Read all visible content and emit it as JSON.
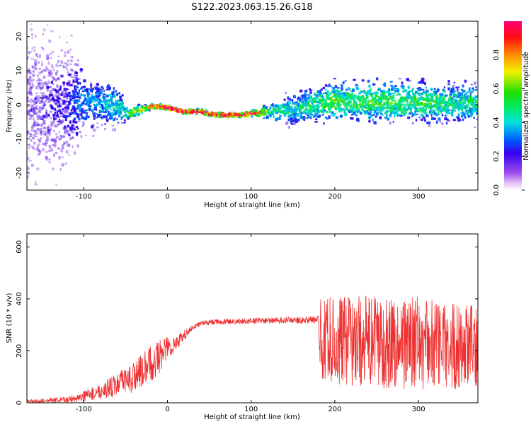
{
  "figure_title": "S122.2023.063.15.26.G18",
  "chart_data": [
    {
      "type": "heatmap",
      "title": "S122.2023.063.15.26.G18",
      "xlabel": "Height of straight line (km)",
      "ylabel": "Frequency (Hz)",
      "xlim": [
        -168,
        371
      ],
      "ylim": [
        -25,
        24.5
      ],
      "xticks": [
        -100,
        0,
        100,
        200,
        300
      ],
      "yticks": [
        -20,
        -10,
        0,
        10,
        20
      ],
      "colorbar": {
        "label": "Normalized spectral amplitude",
        "range": [
          0.0,
          1.0
        ],
        "ticks": [
          "0.0",
          "0.2",
          "0.4",
          "0.6",
          "0.8"
        ],
        "tick_values": [
          0.0,
          0.2,
          0.4,
          0.6,
          0.8
        ]
      },
      "ridge": {
        "x": [
          -168,
          -120,
          -100,
          -80,
          -60,
          -50,
          -40,
          -30,
          -20,
          -10,
          0,
          10,
          20,
          30,
          40,
          50,
          60,
          70,
          80,
          90,
          100,
          110,
          120,
          130,
          140,
          150,
          170,
          200,
          250,
          300,
          340,
          371
        ],
        "frequency": [
          0,
          0,
          1,
          0.5,
          0,
          -2.5,
          -2.2,
          -1.5,
          -0.5,
          -0.5,
          -0.8,
          -1.5,
          -2,
          -2,
          -2,
          -2.5,
          -3,
          -3,
          -3,
          -3,
          -2.5,
          -2.5,
          -2,
          -2,
          -1.5,
          -1.5,
          0,
          1,
          1,
          0.8,
          0.5,
          0.5
        ],
        "spread_hz": [
          20,
          15,
          8,
          6,
          5,
          2,
          1.5,
          1,
          0.7,
          0.6,
          0.5,
          0.5,
          0.5,
          0.5,
          0.6,
          0.6,
          0.6,
          0.6,
          0.6,
          0.6,
          0.7,
          1,
          1.5,
          2.5,
          3,
          3.5,
          4,
          4.5,
          5,
          5,
          4.5,
          4.5
        ],
        "peak_amplitude": [
          0.15,
          0.2,
          0.3,
          0.32,
          0.4,
          0.45,
          0.55,
          0.65,
          0.75,
          0.9,
          0.95,
          0.95,
          0.95,
          0.95,
          0.92,
          0.9,
          0.92,
          0.95,
          0.95,
          0.9,
          0.85,
          0.75,
          0.55,
          0.45,
          0.45,
          0.4,
          0.45,
          0.5,
          0.5,
          0.48,
          0.45,
          0.45
        ]
      }
    },
    {
      "type": "line",
      "xlabel": "Height of straight line (km)",
      "ylabel": "SNR (10 * v/v)",
      "xlim": [
        -168,
        371
      ],
      "ylim": [
        0,
        650
      ],
      "xticks": [
        -100,
        0,
        100,
        200,
        300
      ],
      "yticks": [
        0,
        200,
        400,
        600
      ],
      "line_color": "#ee3030",
      "series": [
        {
          "name": "SNR",
          "envelope_x": [
            -168,
            -150,
            -120,
            -100,
            -80,
            -60,
            -40,
            -20,
            -10,
            0,
            10,
            20,
            30,
            40,
            50,
            100,
            150,
            180,
            183,
            200,
            250,
            300,
            340,
            371
          ],
          "envelope_mean": [
            5,
            8,
            12,
            25,
            45,
            70,
            100,
            150,
            180,
            210,
            230,
            260,
            290,
            305,
            310,
            315,
            318,
            320,
            250,
            240,
            235,
            230,
            220,
            215
          ],
          "envelope_noise": [
            8,
            8,
            12,
            20,
            30,
            45,
            60,
            70,
            70,
            50,
            30,
            20,
            10,
            10,
            10,
            12,
            12,
            15,
            160,
            170,
            180,
            180,
            170,
            160
          ]
        }
      ]
    }
  ]
}
